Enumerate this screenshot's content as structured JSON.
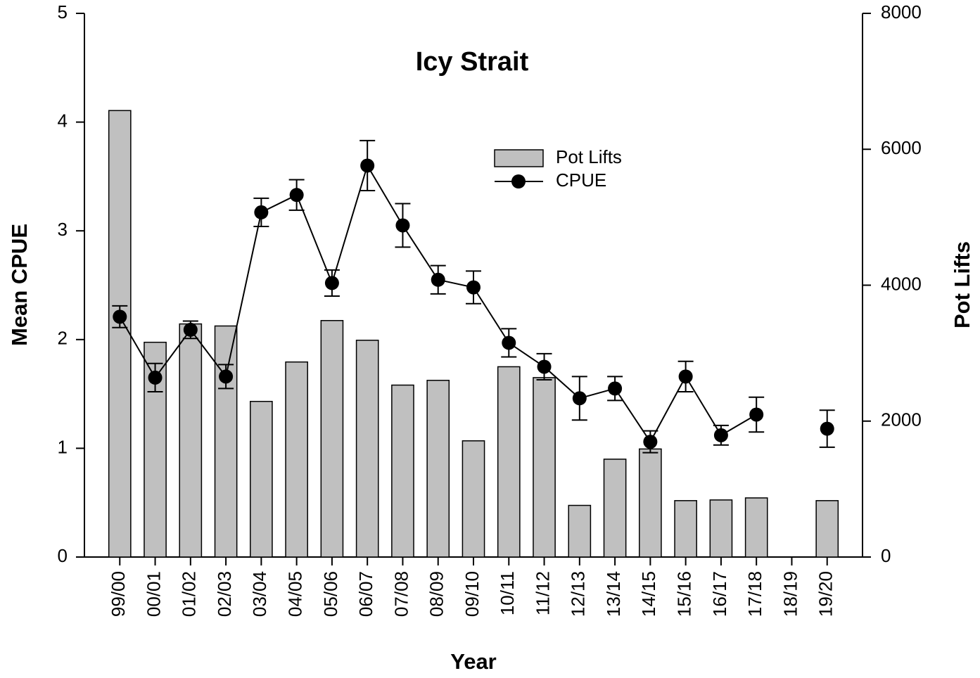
{
  "chart_data": {
    "type": "bar",
    "title": "Icy Strait",
    "x_label": "Year",
    "y_label": "Mean CPUE",
    "y2_label": "Pot Lifts",
    "categories": [
      "99/00",
      "00/01",
      "01/02",
      "02/03",
      "03/04",
      "04/05",
      "05/06",
      "06/07",
      "07/08",
      "08/09",
      "09/10",
      "10/11",
      "11/12",
      "12/13",
      "13/14",
      "14/15",
      "15/16",
      "16/17",
      "17/18",
      "18/19",
      "19/20"
    ],
    "series": [
      {
        "name": "Pot Lifts",
        "type": "bar",
        "axis": "y2",
        "color": "#c0c0c0",
        "values": [
          6570,
          3160,
          3430,
          3400,
          2290,
          2870,
          3480,
          3190,
          2530,
          2600,
          1710,
          2800,
          2640,
          760,
          1440,
          1590,
          830,
          840,
          870,
          null,
          830
        ]
      },
      {
        "name": "CPUE",
        "type": "line",
        "axis": "y",
        "color": "#000000",
        "values": [
          2.21,
          1.65,
          2.09,
          1.66,
          3.17,
          3.33,
          2.52,
          3.6,
          3.05,
          2.55,
          2.48,
          1.97,
          1.75,
          1.46,
          1.55,
          1.06,
          1.66,
          1.12,
          1.31,
          null,
          1.18
        ],
        "errors": [
          0.1,
          0.13,
          0.08,
          0.11,
          0.13,
          0.14,
          0.12,
          0.23,
          0.2,
          0.13,
          0.15,
          0.13,
          0.12,
          0.2,
          0.11,
          0.1,
          0.14,
          0.09,
          0.16,
          null,
          0.17
        ]
      }
    ],
    "ylim": [
      0,
      5
    ],
    "yticks": [
      0,
      1,
      2,
      3,
      4,
      5
    ],
    "y2lim": [
      0,
      8000
    ],
    "y2ticks": [
      0,
      2000,
      4000,
      6000,
      8000
    ],
    "legend": "upper center"
  }
}
